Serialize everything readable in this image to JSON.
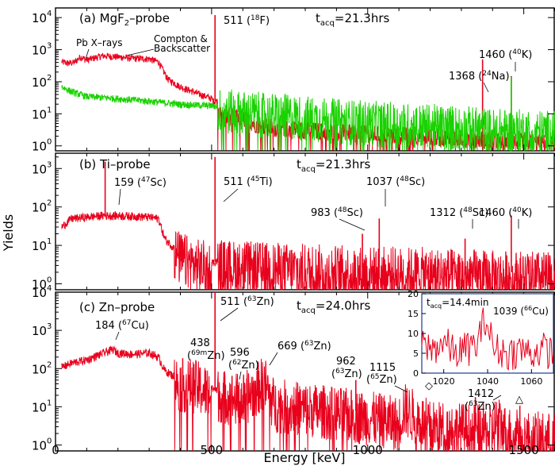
{
  "figure": {
    "ylabel": "Yields",
    "xlabel": "Energy [keV]",
    "x_ticks": [
      "0",
      "500",
      "1000",
      "1500"
    ]
  },
  "colors": {
    "red": "#e8001c",
    "green": "#19d200",
    "inset_frame": "#1f3a93"
  },
  "panels": [
    {
      "label": "(a) MgF",
      "label_sub": "2",
      "label_tail": "–probe",
      "tacq": "=21.3hrs",
      "y_ticks": [
        "10",
        "10",
        "10",
        "10",
        "10"
      ],
      "y_exps": [
        "0",
        "1",
        "2",
        "3",
        "4"
      ],
      "annotations": [
        {
          "text": "511 (",
          "sup": "18",
          "tail": "F)"
        },
        {
          "text": "Pb X–rays"
        },
        {
          "text": "Compton &"
        },
        {
          "text": "Backscatter"
        },
        {
          "text": "1368 (",
          "sup": "24",
          "tail": "Na)"
        },
        {
          "text": "1460 (",
          "sup": "40",
          "tail": "K)"
        }
      ]
    },
    {
      "label": "(b)  Ti–probe",
      "tacq": "=21.3hrs",
      "y_ticks": [
        "10",
        "10",
        "10",
        "10"
      ],
      "y_exps": [
        "0",
        "1",
        "2",
        "3"
      ],
      "annotations": [
        {
          "text": "159 (",
          "sup": "47",
          "tail": "Sc)"
        },
        {
          "text": "511 (",
          "sup": "45",
          "tail": "Ti)"
        },
        {
          "text": "1037 (",
          "sup": "48",
          "tail": "Sc)"
        },
        {
          "text": "983 (",
          "sup": "48",
          "tail": "Sc)"
        },
        {
          "text": "1312 (",
          "sup": "48",
          "tail": "Sc)"
        },
        {
          "text": "1460 (",
          "sup": "40",
          "tail": "K)"
        }
      ]
    },
    {
      "label": "(c)  Zn–probe",
      "tacq": "=24.0hrs",
      "y_ticks": [
        "10",
        "10",
        "10",
        "10",
        "10"
      ],
      "y_exps": [
        "0",
        "1",
        "2",
        "3",
        "4"
      ],
      "annotations": [
        {
          "text": "511 (",
          "sup": "63",
          "tail": "Zn)"
        },
        {
          "text": "184 (",
          "sup": "67",
          "tail": "Cu)"
        },
        {
          "text": "438"
        },
        {
          "text": "(",
          "sup": "69m",
          "tail": "Zn)"
        },
        {
          "text": "596"
        },
        {
          "text": "(",
          "sup": "62",
          "tail": "Zn)"
        },
        {
          "text": "669 (",
          "sup": "63",
          "tail": "Zn)"
        },
        {
          "text": "962"
        },
        {
          "text": "(",
          "sup": "63",
          "tail": "Zn)"
        },
        {
          "text": "1115"
        },
        {
          "text": "(",
          "sup": "65",
          "tail": "Zn)"
        },
        {
          "text": "1412"
        },
        {
          "text": "(",
          "sup": "63",
          "tail": "Zn)"
        },
        {
          "text": "◇"
        },
        {
          "text": "△"
        }
      ],
      "inset": {
        "tacq": "=14.4min",
        "peak": {
          "text": "1039 (",
          "sup": "66",
          "tail": "Cu)"
        },
        "y_ticks": [
          "0",
          "5",
          "10",
          "15",
          "20"
        ],
        "x_ticks": [
          "1020",
          "1040",
          "1060"
        ]
      }
    }
  ],
  "chart_data": [
    {
      "type": "line",
      "title": "(a) MgF2–probe",
      "xlabel": "Energy [keV]",
      "ylabel": "Yields",
      "xlim": [
        0,
        1600
      ],
      "ylim": [
        0.7,
        20000
      ],
      "yscale": "log",
      "grid": false,
      "series": [
        {
          "color": "#e8001c",
          "x": [
            0,
            20,
            40,
            60,
            80,
            100,
            150,
            200,
            250,
            300,
            330,
            360,
            400,
            450,
            500,
            505,
            511,
            518,
            530,
            600,
            650,
            700,
            800,
            900,
            1000,
            1100,
            1200,
            1300,
            1368,
            1400,
            1460,
            1500,
            1600
          ],
          "y": [
            1,
            420,
            380,
            400,
            600,
            480,
            650,
            600,
            540,
            520,
            420,
            120,
            70,
            45,
            30,
            25,
            12000,
            25,
            10,
            8,
            5,
            4,
            3.5,
            3,
            2.6,
            2.4,
            2.1,
            1.9,
            500,
            1.7,
            150,
            1.5,
            1.3
          ]
        },
        {
          "color": "#19d200",
          "x": [
            0,
            20,
            50,
            100,
            200,
            300,
            400,
            500,
            600,
            700,
            800,
            900,
            1000,
            1100,
            1200,
            1300,
            1400,
            1460,
            1500,
            1600
          ],
          "y": [
            1,
            70,
            50,
            35,
            30,
            25,
            20,
            18,
            14,
            12,
            10,
            8,
            7,
            6,
            5.5,
            5,
            4,
            140,
            3.8,
            3.4
          ]
        }
      ]
    },
    {
      "type": "line",
      "title": "(b) Ti–probe",
      "xlabel": "Energy [keV]",
      "ylabel": "Yields",
      "xlim": [
        0,
        1600
      ],
      "ylim": [
        0.7,
        2500
      ],
      "yscale": "log",
      "grid": false,
      "series": [
        {
          "color": "#e8001c",
          "x": [
            0,
            20,
            50,
            100,
            150,
            159,
            200,
            250,
            300,
            330,
            350,
            400,
            450,
            500,
            511,
            520,
            600,
            700,
            800,
            900,
            983,
            1000,
            1037,
            1100,
            1200,
            1300,
            1312,
            1400,
            1460,
            1500,
            1600
          ],
          "y": [
            1,
            30,
            50,
            55,
            60,
            1500,
            60,
            58,
            55,
            50,
            15,
            6,
            4,
            3.5,
            2000,
            4,
            3.5,
            3.2,
            3,
            2.8,
            20,
            2.6,
            50,
            2.5,
            2.4,
            2.2,
            15,
            2,
            60,
            2,
            1.8
          ]
        }
      ]
    },
    {
      "type": "line",
      "title": "(c) Zn–probe",
      "xlabel": "Energy [keV]",
      "ylabel": "Yields",
      "xlim": [
        0,
        1600
      ],
      "ylim": [
        0.7,
        10000
      ],
      "yscale": "log",
      "grid": false,
      "series": [
        {
          "color": "#e8001c",
          "x": [
            0,
            20,
            50,
            100,
            150,
            184,
            200,
            250,
            300,
            330,
            350,
            400,
            438,
            450,
            500,
            511,
            520,
            596,
            600,
            669,
            700,
            800,
            900,
            962,
            1000,
            1100,
            1115,
            1200,
            1300,
            1345,
            1400,
            1412,
            1450,
            1480,
            1500,
            1600
          ],
          "y": [
            1,
            110,
            140,
            170,
            250,
            320,
            260,
            240,
            260,
            200,
            90,
            50,
            50,
            45,
            30,
            10000,
            28,
            20,
            20,
            60,
            15,
            12,
            9,
            50,
            7,
            5,
            12,
            4,
            3.5,
            18,
            3,
            6,
            2.5,
            4,
            2.2,
            1.8
          ]
        }
      ]
    },
    {
      "type": "line",
      "title": "",
      "xlim": [
        1010,
        1070
      ],
      "ylim": [
        0,
        20
      ],
      "yscale": "linear",
      "grid": false,
      "series": [
        {
          "color": "#e8001c",
          "x": [
            1010,
            1015,
            1020,
            1025,
            1030,
            1035,
            1039,
            1043,
            1050,
            1055,
            1060,
            1065,
            1070
          ],
          "y": [
            7,
            6,
            8,
            5,
            6,
            7,
            14,
            6,
            5,
            6,
            5,
            6,
            5
          ]
        }
      ]
    }
  ]
}
